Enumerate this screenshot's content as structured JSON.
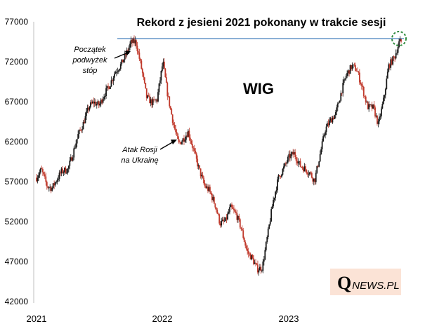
{
  "chart_data": {
    "type": "candlestick",
    "title": "Rekord z jesieni 2021 pokonany w trakcie sesji",
    "label": "WIG",
    "ylim": [
      42000,
      77000
    ],
    "yticks": [
      "77000",
      "72000",
      "67000",
      "62000",
      "57000",
      "52000",
      "47000",
      "42000"
    ],
    "xticks": [
      "2021",
      "2022",
      "2023"
    ],
    "grid": false,
    "record_level": 74900,
    "annotations": [
      {
        "lines": [
          "Początek",
          "podwyżek",
          "stóp"
        ]
      },
      {
        "lines": [
          "Atak Rosji",
          "na Ukrainę"
        ]
      }
    ],
    "colors": {
      "up": "#1a1a1a",
      "down": "#c0392b",
      "record_line": "#2e6fb5",
      "circle": "#2e8b3d",
      "logo_bg": "#fbe3d6"
    },
    "path_points": [
      [
        "2021-01-01",
        57600
      ],
      [
        "2021-01-15",
        58600
      ],
      [
        "2021-02-01",
        56500
      ],
      [
        "2021-02-15",
        56300
      ],
      [
        "2021-03-01",
        57400
      ],
      [
        "2021-03-15",
        58400
      ],
      [
        "2021-04-01",
        58600
      ],
      [
        "2021-04-15",
        60400
      ],
      [
        "2021-05-01",
        62900
      ],
      [
        "2021-05-15",
        64200
      ],
      [
        "2021-06-01",
        66400
      ],
      [
        "2021-06-15",
        67000
      ],
      [
        "2021-07-01",
        66600
      ],
      [
        "2021-07-15",
        67900
      ],
      [
        "2021-08-01",
        69200
      ],
      [
        "2021-08-15",
        70700
      ],
      [
        "2021-09-01",
        71600
      ],
      [
        "2021-09-15",
        72800
      ],
      [
        "2021-10-01",
        74400
      ],
      [
        "2021-10-15",
        74500
      ],
      [
        "2021-11-01",
        71000
      ],
      [
        "2021-11-15",
        67600
      ],
      [
        "2021-12-01",
        66900
      ],
      [
        "2021-12-15",
        67300
      ],
      [
        "2022-01-01",
        72000
      ],
      [
        "2022-01-15",
        67800
      ],
      [
        "2022-02-01",
        64200
      ],
      [
        "2022-02-15",
        61800
      ],
      [
        "2022-03-01",
        62400
      ],
      [
        "2022-03-15",
        63300
      ],
      [
        "2022-04-01",
        60800
      ],
      [
        "2022-04-15",
        58700
      ],
      [
        "2022-05-01",
        56600
      ],
      [
        "2022-05-15",
        56000
      ],
      [
        "2022-06-01",
        54200
      ],
      [
        "2022-06-15",
        51900
      ],
      [
        "2022-07-01",
        52200
      ],
      [
        "2022-07-15",
        53900
      ],
      [
        "2022-08-01",
        53000
      ],
      [
        "2022-08-15",
        51300
      ],
      [
        "2022-09-01",
        48400
      ],
      [
        "2022-09-15",
        47600
      ],
      [
        "2022-10-01",
        46200
      ],
      [
        "2022-10-15",
        46400
      ],
      [
        "2022-11-01",
        50800
      ],
      [
        "2022-11-15",
        54600
      ],
      [
        "2022-12-01",
        57600
      ],
      [
        "2022-12-15",
        58700
      ],
      [
        "2023-01-01",
        60200
      ],
      [
        "2023-01-15",
        60600
      ],
      [
        "2023-02-01",
        59100
      ],
      [
        "2023-02-15",
        58700
      ],
      [
        "2023-03-01",
        58200
      ],
      [
        "2023-03-15",
        57200
      ],
      [
        "2023-04-01",
        60700
      ],
      [
        "2023-04-15",
        63600
      ],
      [
        "2023-05-01",
        64800
      ],
      [
        "2023-05-15",
        65500
      ],
      [
        "2023-06-01",
        68400
      ],
      [
        "2023-06-15",
        70400
      ],
      [
        "2023-07-01",
        71500
      ],
      [
        "2023-07-15",
        71000
      ],
      [
        "2023-08-01",
        68600
      ],
      [
        "2023-08-15",
        66400
      ],
      [
        "2023-09-01",
        66300
      ],
      [
        "2023-09-15",
        64200
      ],
      [
        "2023-10-01",
        67400
      ],
      [
        "2023-10-15",
        71500
      ],
      [
        "2023-11-01",
        72600
      ],
      [
        "2023-11-15",
        74500
      ]
    ],
    "source": "QNEWS.PL"
  }
}
